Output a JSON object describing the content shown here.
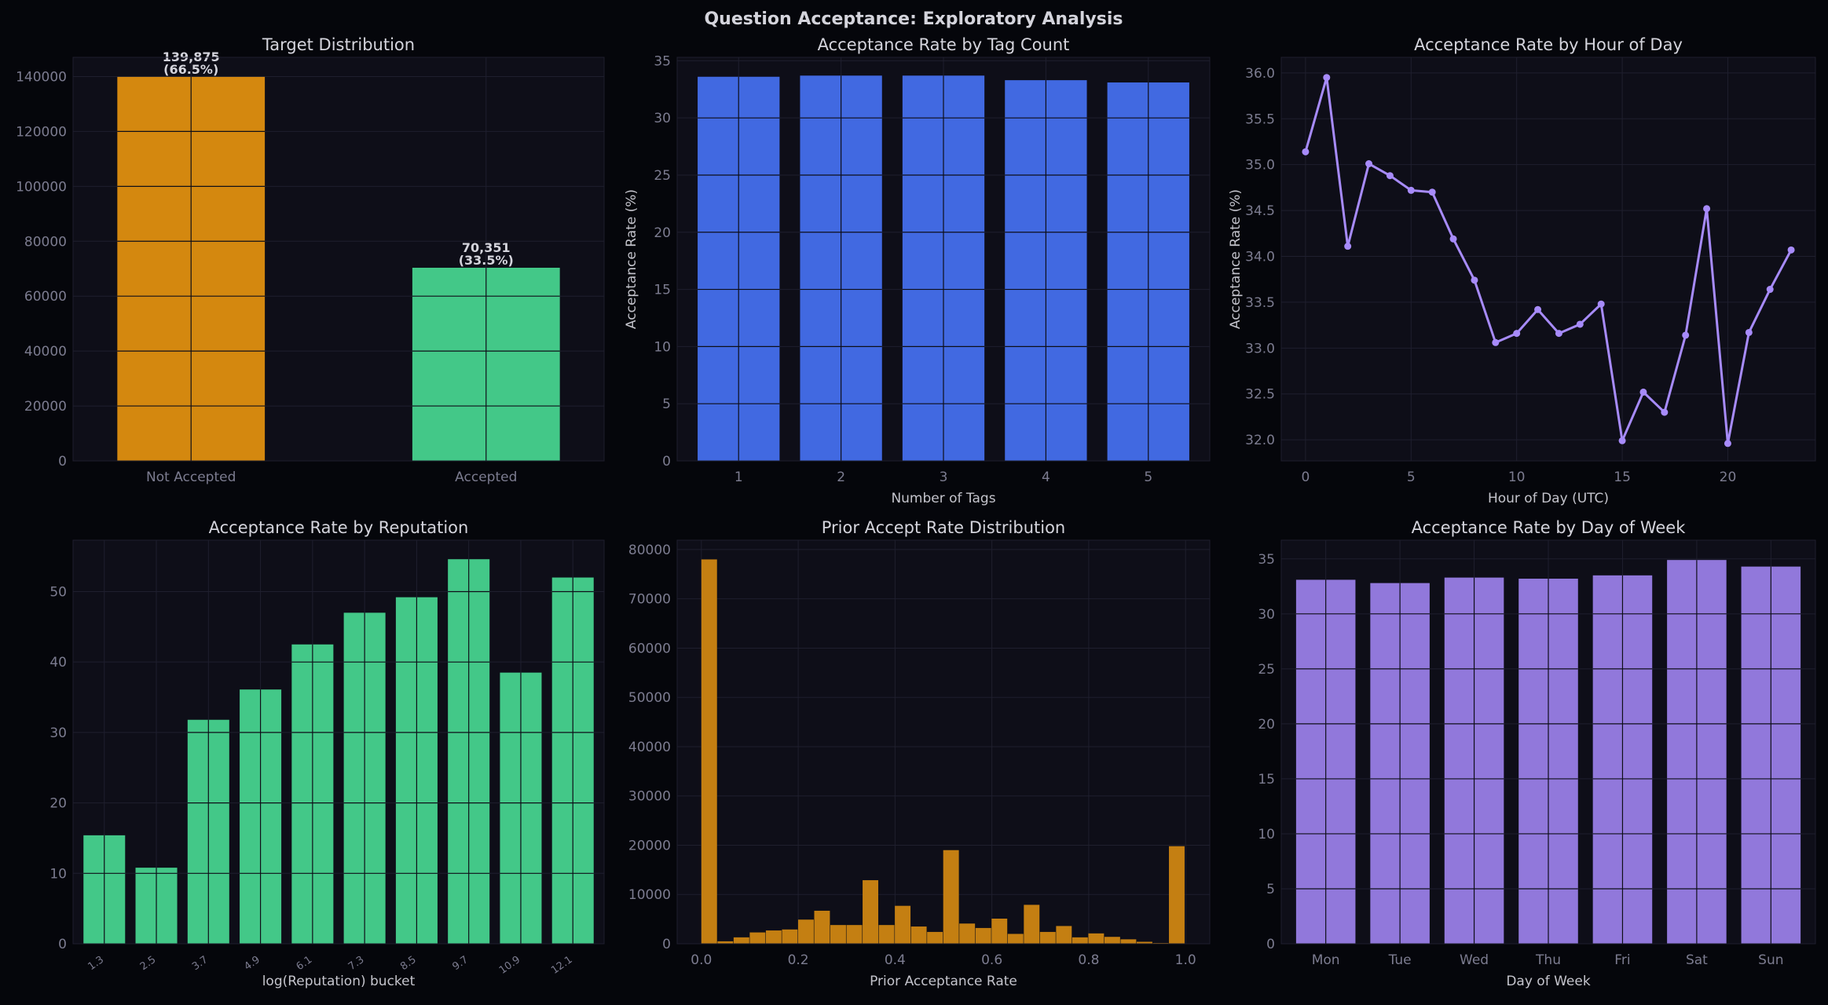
{
  "figure": {
    "title": "Question Acceptance: Exploratory Analysis",
    "background": "#05060b",
    "plot_background": "#0e0e18"
  },
  "chart_data": [
    {
      "id": "target",
      "type": "bar",
      "title": "Target Distribution",
      "xlabel": "",
      "ylabel": "",
      "categories": [
        "Not Accepted",
        "Accepted"
      ],
      "values": [
        139875,
        70351
      ],
      "colors": [
        "#d4880f",
        "#43c888"
      ],
      "data_labels": [
        [
          "139,875",
          "(66.5%)"
        ],
        [
          "70,351",
          "(33.5%)"
        ]
      ],
      "ylim": [
        0,
        147000
      ],
      "yticks": [
        0,
        20000,
        40000,
        60000,
        80000,
        100000,
        120000,
        140000
      ],
      "grid": true
    },
    {
      "id": "tagcount",
      "type": "bar",
      "title": "Acceptance Rate by Tag Count",
      "xlabel": "Number of Tags",
      "ylabel": "Acceptance Rate (%)",
      "categories": [
        "1",
        "2",
        "3",
        "4",
        "5"
      ],
      "values": [
        33.6,
        33.7,
        33.7,
        33.3,
        33.1
      ],
      "color": "#4169e1",
      "ylim": [
        0,
        35.3
      ],
      "yticks": [
        0,
        5,
        10,
        15,
        20,
        25,
        30,
        35
      ],
      "grid": true
    },
    {
      "id": "hour",
      "type": "line",
      "title": "Acceptance Rate by Hour of Day",
      "xlabel": "Hour of Day (UTC)",
      "ylabel": "Acceptance Rate (%)",
      "x": [
        0,
        1,
        2,
        3,
        4,
        5,
        6,
        7,
        8,
        9,
        10,
        11,
        12,
        13,
        14,
        15,
        16,
        17,
        18,
        19,
        20,
        21,
        22,
        23
      ],
      "y": [
        35.14,
        35.95,
        34.11,
        35.01,
        34.88,
        34.72,
        34.7,
        34.19,
        33.74,
        33.06,
        33.16,
        33.42,
        33.16,
        33.26,
        33.48,
        31.99,
        32.52,
        32.3,
        33.14,
        34.52,
        31.96,
        33.17,
        33.64,
        34.07
      ],
      "color": "#a78bfa",
      "xlim": [
        -1.15,
        24.15
      ],
      "ylim": [
        31.77,
        36.17
      ],
      "xticks": [
        0,
        5,
        10,
        15,
        20
      ],
      "yticks": [
        32.0,
        32.5,
        33.0,
        33.5,
        34.0,
        34.5,
        35.0,
        35.5,
        36.0
      ],
      "ytick_labels": [
        "32.0",
        "32.5",
        "33.0",
        "33.5",
        "34.0",
        "34.5",
        "35.0",
        "35.5",
        "36.0"
      ],
      "grid": true
    },
    {
      "id": "reputation",
      "type": "bar",
      "title": "Acceptance Rate by Reputation",
      "xlabel": "log(Reputation) bucket",
      "ylabel": "",
      "categories": [
        "1.3",
        "2.5",
        "3.7",
        "4.9",
        "6.1",
        "7.3",
        "8.5",
        "9.7",
        "10.9",
        "12.1"
      ],
      "values": [
        15.4,
        10.8,
        31.8,
        36.1,
        42.5,
        47.0,
        49.2,
        54.6,
        38.5,
        52.0
      ],
      "color": "#43c888",
      "ylim": [
        0,
        57.3
      ],
      "yticks": [
        0,
        10,
        20,
        30,
        40,
        50
      ],
      "grid": true
    },
    {
      "id": "prior",
      "type": "bar",
      "title": "Prior Accept Rate Distribution",
      "xlabel": "Prior Acceptance Rate",
      "ylabel": "",
      "bin_edges_start": 0.0,
      "bin_width": 0.0333,
      "counts": [
        78000,
        500,
        1300,
        2300,
        2700,
        2900,
        4900,
        6700,
        3800,
        3800,
        12900,
        3800,
        7700,
        3500,
        2400,
        19000,
        4100,
        3200,
        5100,
        2000,
        7900,
        2400,
        3600,
        1300,
        2100,
        1400,
        900,
        400,
        150,
        19800
      ],
      "color": "#c47f12",
      "xlim": [
        -0.05,
        1.05
      ],
      "ylim": [
        0,
        81900
      ],
      "xticks": [
        0.0,
        0.2,
        0.4,
        0.6,
        0.8,
        1.0
      ],
      "xtick_labels": [
        "0.0",
        "0.2",
        "0.4",
        "0.6",
        "0.8",
        "1.0"
      ],
      "yticks": [
        0,
        10000,
        20000,
        30000,
        40000,
        50000,
        60000,
        70000,
        80000
      ],
      "grid": true
    },
    {
      "id": "weekday",
      "type": "bar",
      "title": "Acceptance Rate by Day of Week",
      "xlabel": "Day of Week",
      "ylabel": "",
      "categories": [
        "Mon",
        "Tue",
        "Wed",
        "Thu",
        "Fri",
        "Sat",
        "Sun"
      ],
      "values": [
        33.1,
        32.8,
        33.3,
        33.2,
        33.5,
        34.9,
        34.3
      ],
      "color": "#9178db",
      "ylim": [
        0,
        36.7
      ],
      "yticks": [
        0,
        5,
        10,
        15,
        20,
        25,
        30,
        35
      ],
      "grid": true
    }
  ]
}
